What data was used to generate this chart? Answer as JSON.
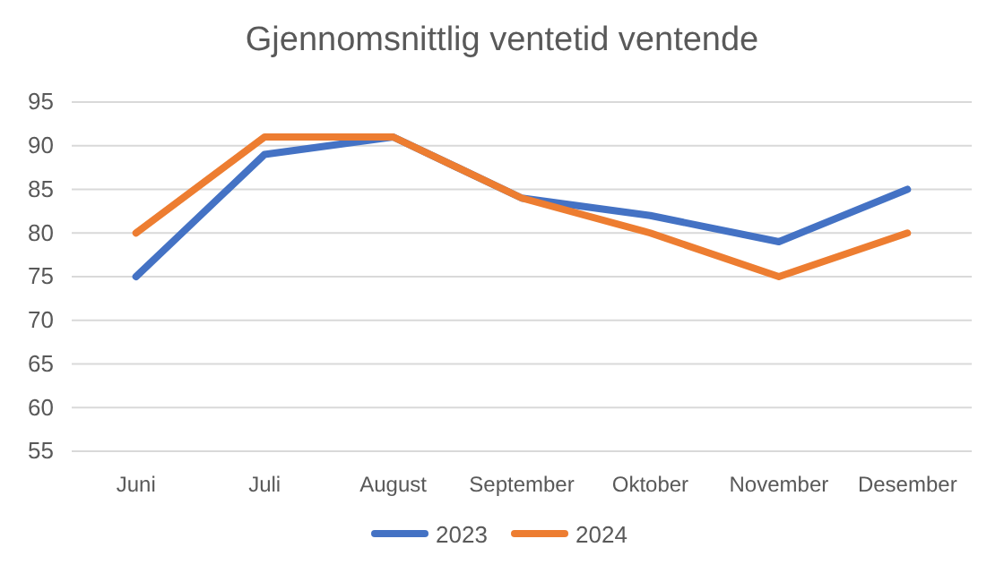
{
  "chart_data": {
    "type": "line",
    "title": "Gjennomsnittlig ventetid ventende",
    "categories": [
      "Juni",
      "Juli",
      "August",
      "September",
      "Oktober",
      "November",
      "Desember"
    ],
    "series": [
      {
        "name": "2023",
        "color": "#4472c4",
        "values": [
          75,
          89,
          91,
          84,
          82,
          79,
          85
        ]
      },
      {
        "name": "2024",
        "color": "#ed7d31",
        "values": [
          80,
          91,
          91,
          84,
          80,
          75,
          80
        ]
      }
    ],
    "ylim": [
      55,
      95
    ],
    "yticks": [
      55,
      60,
      65,
      70,
      75,
      80,
      85,
      90,
      95
    ],
    "grid": "y",
    "legend": "bottom",
    "marker": "none",
    "line_style": "solid"
  }
}
